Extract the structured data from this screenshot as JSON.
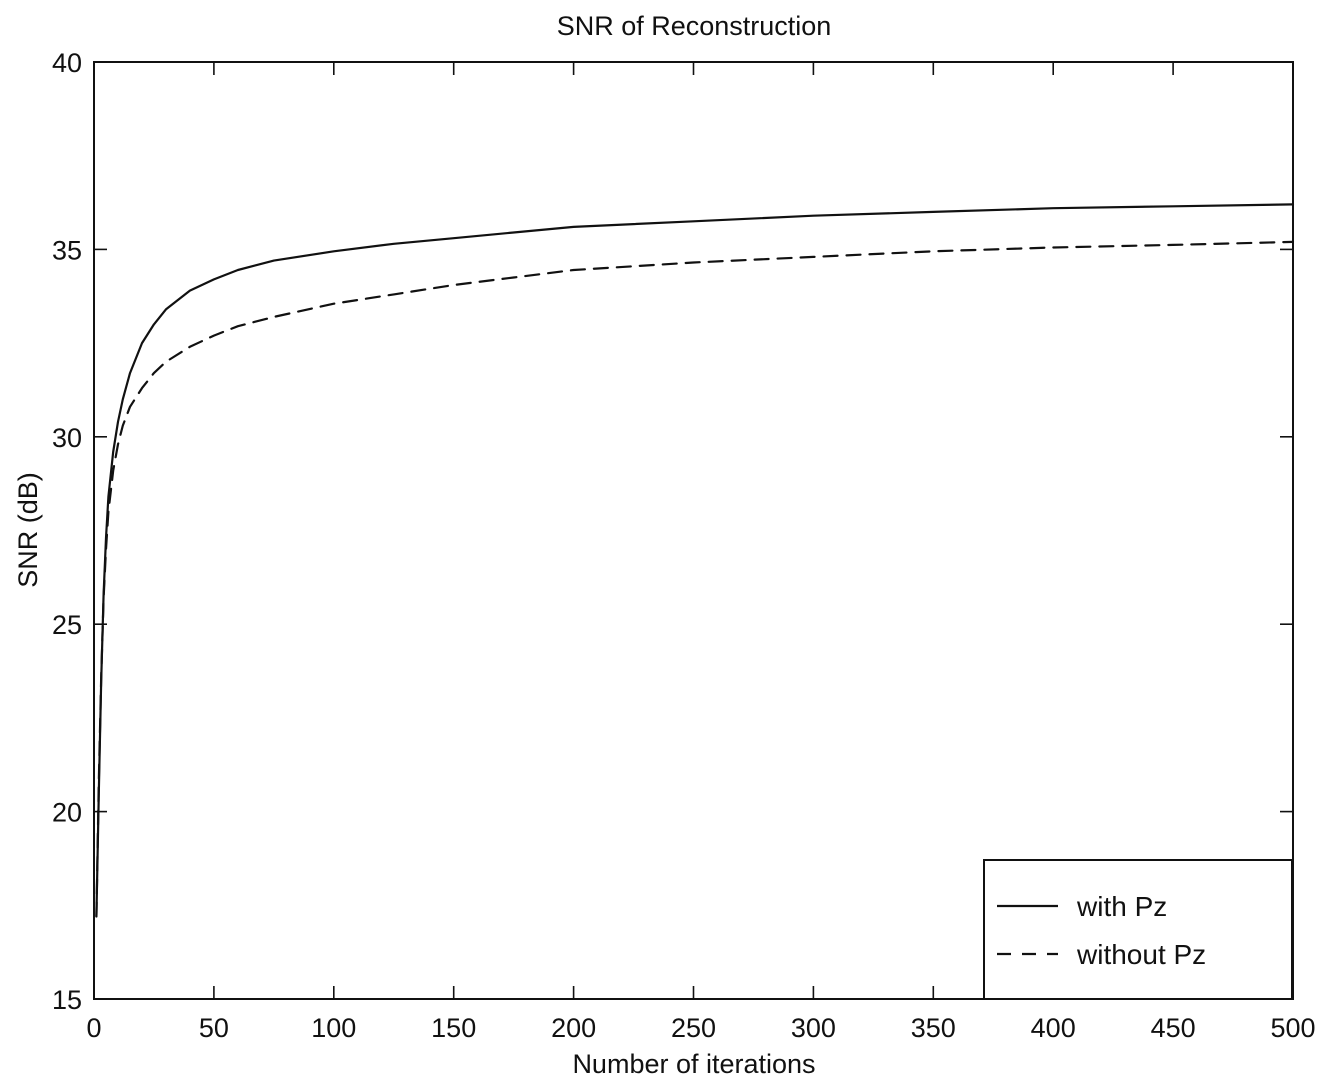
{
  "chart_data": {
    "type": "line",
    "title": "SNR of Reconstruction",
    "xlabel": "Number of iterations",
    "ylabel": "SNR (dB)",
    "xlim": [
      0,
      500
    ],
    "ylim": [
      15,
      40
    ],
    "xticks": [
      0,
      50,
      100,
      150,
      200,
      250,
      300,
      350,
      400,
      450,
      500
    ],
    "yticks": [
      15,
      20,
      25,
      30,
      35,
      40
    ],
    "grid": false,
    "legend_position": "bottom-right",
    "series": [
      {
        "name": "with Pz",
        "style": "solid",
        "x": [
          1,
          2,
          3,
          4,
          5,
          6,
          8,
          10,
          12,
          15,
          20,
          25,
          30,
          40,
          50,
          60,
          75,
          100,
          125,
          150,
          175,
          200,
          250,
          300,
          350,
          400,
          450,
          500
        ],
        "y": [
          17.2,
          20.5,
          23.5,
          25.8,
          27.3,
          28.4,
          29.6,
          30.4,
          31.0,
          31.7,
          32.5,
          33.0,
          33.4,
          33.9,
          34.2,
          34.45,
          34.7,
          34.95,
          35.15,
          35.3,
          35.45,
          35.6,
          35.75,
          35.9,
          36.0,
          36.1,
          36.15,
          36.2
        ]
      },
      {
        "name": "without Pz",
        "style": "dashed",
        "x": [
          1,
          2,
          3,
          4,
          5,
          6,
          8,
          10,
          12,
          15,
          20,
          25,
          30,
          40,
          50,
          60,
          75,
          100,
          125,
          150,
          175,
          200,
          250,
          300,
          350,
          400,
          450,
          500
        ],
        "y": [
          17.2,
          20.8,
          23.6,
          25.7,
          27.0,
          28.0,
          29.1,
          29.8,
          30.3,
          30.8,
          31.3,
          31.7,
          32.0,
          32.4,
          32.7,
          32.95,
          33.2,
          33.55,
          33.8,
          34.05,
          34.25,
          34.45,
          34.65,
          34.8,
          34.95,
          35.05,
          35.12,
          35.2
        ]
      }
    ]
  }
}
